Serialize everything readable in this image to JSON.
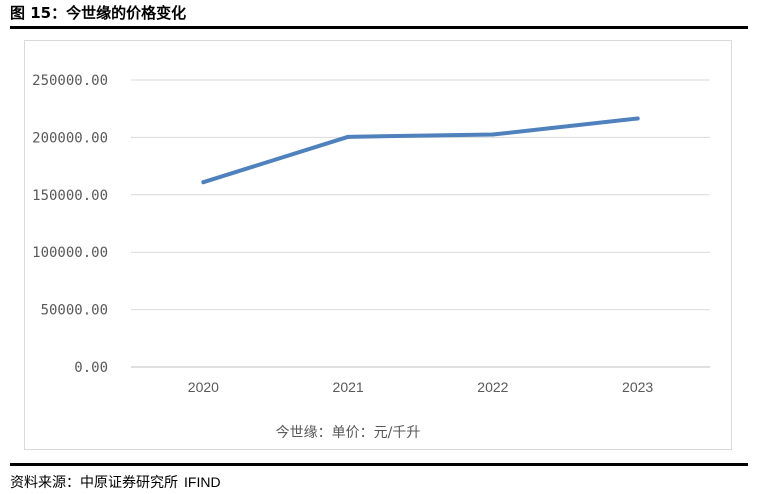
{
  "figure": {
    "title": "图 15：今世缘的价格变化",
    "source_label": "资料来源：中原证券研究所",
    "source_brand": "IFIND"
  },
  "chart_data": {
    "type": "line",
    "categories": [
      "2020",
      "2021",
      "2022",
      "2023"
    ],
    "series": [
      {
        "name": "今世缘：单价：元/千升",
        "values": [
          161000,
          200500,
          202500,
          216500
        ],
        "color": "#4f81bd"
      }
    ],
    "y_ticks": [
      "0.00",
      "50000.00",
      "100000.00",
      "150000.00",
      "200000.00",
      "250000.00"
    ],
    "ylim": [
      0,
      250000
    ],
    "grid": true,
    "legend": "bottom",
    "xlabel": "",
    "ylabel": ""
  }
}
